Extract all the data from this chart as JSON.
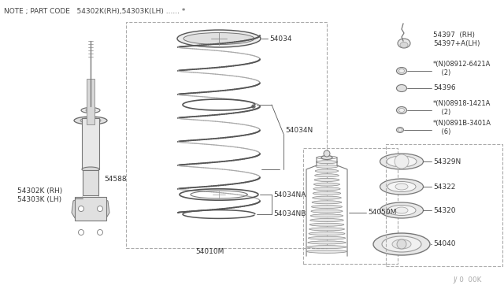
{
  "background_color": "#ffffff",
  "text_color": "#333333",
  "line_color": "#666666",
  "note_text": "NOTE ; PART CODE   54302K(RH),54303K(LH) ...... *",
  "watermark": "J/ 0  00K",
  "parts": {
    "main_label_1": "54588",
    "main_label_2": "54302K (RH)\n54303K (LH)",
    "spring_top": "54034",
    "spring_ring1": "54034N",
    "spring_bottom1": "54034NA",
    "spring_bottom2": "54034NB",
    "spring_assembly": "54010M",
    "bump_stop": "54050M",
    "top_mount_1": "54397  (RH)\n54397+A(LH)",
    "bolt_1": "*(N)08912-6421A\n    (2)",
    "nut_1": "54396",
    "bolt_2": "*(N)08918-1421A\n    (2)",
    "bolt_3": "*(N)0891B-3401A\n    (6)",
    "bearing": "54329N",
    "seat_upper": "54322",
    "seat_lower": "54320",
    "strut_mount": "54040"
  },
  "figsize": [
    6.4,
    3.72
  ],
  "dpi": 100
}
